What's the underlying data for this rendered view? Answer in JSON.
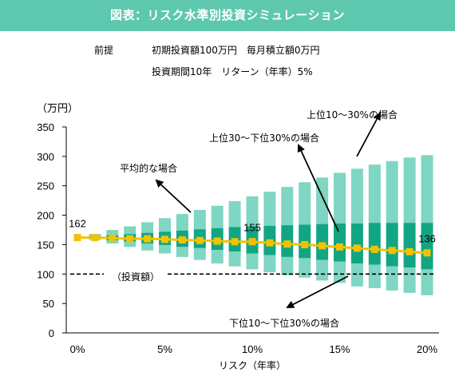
{
  "banner": {
    "title": "図表：リスク水準別投資シミュレーション"
  },
  "premise": {
    "label": "前提",
    "line1": "初期投資額100万円　毎月積立額0万円",
    "line2": "投資期間10年　リターン（年率）5%"
  },
  "chart_data": {
    "type": "bar",
    "y_unit_label": "（万円）",
    "xlabel": "リスク（年率）",
    "x_ticks": [
      "0%",
      "5%",
      "10%",
      "15%",
      "20%"
    ],
    "xlim": [
      0,
      20
    ],
    "ylim": [
      0,
      350
    ],
    "y_ticks": [
      0,
      50,
      100,
      150,
      200,
      250,
      300,
      350
    ],
    "x": [
      0,
      1,
      2,
      3,
      4,
      5,
      6,
      7,
      8,
      9,
      10,
      11,
      12,
      13,
      14,
      15,
      16,
      17,
      18,
      19,
      20
    ],
    "bands": {
      "lower_10": [
        162,
        158,
        152,
        146,
        140,
        135,
        129,
        124,
        118,
        113,
        108,
        103,
        98,
        94,
        89,
        85,
        79,
        76,
        72,
        68,
        64
      ],
      "lower_30": [
        162,
        160,
        157,
        155,
        152,
        149,
        146,
        144,
        141,
        138,
        135,
        132,
        129,
        127,
        124,
        121,
        118,
        116,
        113,
        111,
        108
      ],
      "upper_30": [
        162,
        164,
        166,
        168,
        170,
        172,
        174,
        176,
        178,
        180,
        181,
        182,
        183,
        184,
        185,
        186,
        186,
        187,
        187,
        187,
        187
      ],
      "upper_10": [
        162,
        168,
        175,
        181,
        188,
        195,
        202,
        209,
        216,
        224,
        232,
        240,
        248,
        256,
        264,
        272,
        279,
        286,
        292,
        298,
        302
      ]
    },
    "average": [
      162,
      162,
      161,
      160,
      160,
      159,
      158,
      157,
      156,
      155,
      155,
      153,
      151,
      150,
      148,
      146,
      144,
      142,
      140,
      138,
      136
    ],
    "data_labels": [
      {
        "x": 0,
        "value": "162"
      },
      {
        "x": 10,
        "value": "155"
      },
      {
        "x": 20,
        "value": "136"
      }
    ],
    "reference_line": {
      "y": 100,
      "label": "（投資額）"
    },
    "annotations": {
      "upper_10_30": "上位10～30%の場合",
      "upper30_lower30": "上位30～下位30%の場合",
      "average": "平均的な場合",
      "lower_10_30": "下位10～下位30%の場合"
    },
    "colors": {
      "outer_band": "#7fd6c2",
      "inner_band": "#12a584",
      "average_line": "#f2c200",
      "reference_line": "#000000"
    }
  }
}
